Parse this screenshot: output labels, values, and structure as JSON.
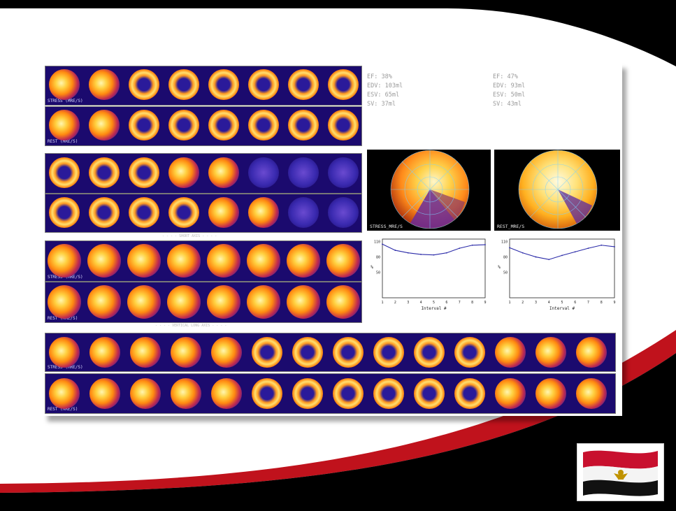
{
  "slide": {
    "colors": {
      "background": "#000000",
      "swoosh_red": "#c0121c",
      "panel": "#ffffff",
      "strip_bg": "#1b0a6e"
    }
  },
  "spect": {
    "sa_stress_label": "STRESS (MRE/S)",
    "sa_rest_label": "REST (MRE/S)",
    "vla_stress_label": "STRESS (MRE/S)",
    "vla_rest_label": "REST (MRE/S)",
    "hla_stress_label": "STRESS (MRE/S)",
    "hla_rest_label": "REST (MRE/S)",
    "divider_1": "- - - - SHORT AXIS - - - -",
    "divider_2": "- - - - VERTICAL LONG AXIS - - - -",
    "stats_stress": [
      "EF: 38%",
      "EDV: 103ml",
      "ESV: 65ml",
      "SV: 37ml"
    ],
    "stats_rest": [
      "EF: 47%",
      "EDV: 93ml",
      "ESV: 50ml",
      "SV: 43ml"
    ],
    "polar_stress_label": "STRESS_MRE/S",
    "polar_rest_label": "REST_MRE/S",
    "graph_stress": {
      "xlabel": "Interval #",
      "ylabel": "%",
      "yticks": [
        "110",
        "80",
        "50"
      ],
      "xticks": [
        "1",
        "2",
        "3",
        "4",
        "5",
        "6",
        "7",
        "8",
        "9"
      ]
    },
    "graph_rest": {
      "xlabel": "Interval #",
      "ylabel": "%",
      "yticks": [
        "110",
        "80",
        "50"
      ],
      "xticks": [
        "1",
        "2",
        "3",
        "4",
        "5",
        "6",
        "7",
        "8",
        "9"
      ]
    }
  },
  "chart_data": [
    {
      "type": "line",
      "title": "",
      "xlabel": "Interval #",
      "ylabel": "%",
      "x": [
        1,
        2,
        3,
        4,
        5,
        6,
        7,
        8,
        9
      ],
      "ylim": [
        0,
        115
      ],
      "series": [
        {
          "values": [
            105,
            93,
            88,
            85,
            84,
            88,
            97,
            103,
            104
          ]
        }
      ]
    },
    {
      "type": "line",
      "title": "",
      "xlabel": "Interval #",
      "ylabel": "%",
      "x": [
        1,
        2,
        3,
        4,
        5,
        6,
        7,
        8,
        9
      ],
      "ylim": [
        0,
        115
      ],
      "series": [
        {
          "values": [
            98,
            88,
            80,
            75,
            83,
            90,
            97,
            103,
            100
          ]
        }
      ]
    }
  ],
  "flag": {
    "icon": "egypt-flag-icon",
    "colors": [
      "#c8102e",
      "#ffffff",
      "#000000",
      "#c09300"
    ]
  }
}
